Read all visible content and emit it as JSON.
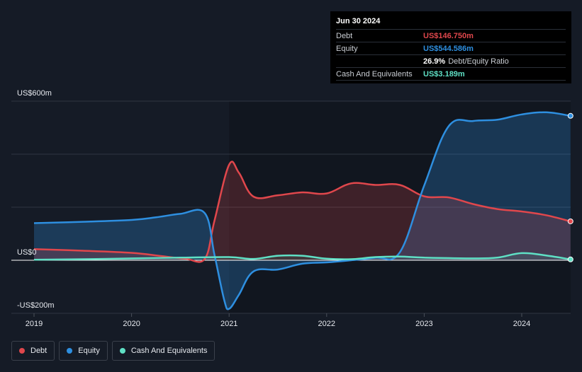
{
  "chart_data": {
    "type": "area",
    "y_axis_labels": [
      "US$600m",
      "US$0",
      "-US$200m"
    ],
    "ylim": [
      -200,
      600
    ],
    "x_ticks": [
      {
        "label": "2019",
        "x": 2019.0
      },
      {
        "label": "2020",
        "x": 2020.0
      },
      {
        "label": "2021",
        "x": 2021.0
      },
      {
        "label": "2022",
        "x": 2022.0
      },
      {
        "label": "2023",
        "x": 2023.0
      },
      {
        "label": "2024",
        "x": 2024.0
      }
    ],
    "xlim": [
      2018.75,
      2024.5
    ],
    "series": [
      {
        "name": "Debt",
        "color": "#e0474c",
        "fill": "rgba(224,71,76,0.22)",
        "points": [
          [
            2019.0,
            42
          ],
          [
            2019.5,
            36
          ],
          [
            2020.0,
            28
          ],
          [
            2020.3,
            16
          ],
          [
            2020.55,
            6
          ],
          [
            2020.75,
            5
          ],
          [
            2020.85,
            150
          ],
          [
            2021.0,
            360
          ],
          [
            2021.1,
            330
          ],
          [
            2021.25,
            240
          ],
          [
            2021.5,
            245
          ],
          [
            2021.75,
            256
          ],
          [
            2022.0,
            252
          ],
          [
            2022.25,
            290
          ],
          [
            2022.5,
            284
          ],
          [
            2022.75,
            284
          ],
          [
            2023.0,
            241
          ],
          [
            2023.25,
            237
          ],
          [
            2023.5,
            212
          ],
          [
            2023.75,
            193
          ],
          [
            2024.0,
            184
          ],
          [
            2024.25,
            170
          ],
          [
            2024.5,
            146.75
          ]
        ]
      },
      {
        "name": "Equity",
        "color": "#2e8fe0",
        "fill": "rgba(46,143,224,0.28)",
        "points": [
          [
            2019.0,
            140
          ],
          [
            2019.5,
            145
          ],
          [
            2020.0,
            152
          ],
          [
            2020.25,
            162
          ],
          [
            2020.5,
            175
          ],
          [
            2020.75,
            178
          ],
          [
            2020.85,
            20
          ],
          [
            2020.95,
            -150
          ],
          [
            2021.0,
            -183
          ],
          [
            2021.1,
            -130
          ],
          [
            2021.25,
            -42
          ],
          [
            2021.5,
            -35
          ],
          [
            2021.75,
            -13
          ],
          [
            2022.0,
            -8
          ],
          [
            2022.25,
            0
          ],
          [
            2022.5,
            10
          ],
          [
            2022.75,
            30
          ],
          [
            2023.0,
            282
          ],
          [
            2023.25,
            505
          ],
          [
            2023.5,
            525
          ],
          [
            2023.75,
            530
          ],
          [
            2024.0,
            550
          ],
          [
            2024.25,
            558
          ],
          [
            2024.5,
            544.586
          ]
        ]
      },
      {
        "name": "Cash And Equivalents",
        "color": "#5fe0c5",
        "fill": "rgba(95,224,197,0.12)",
        "points": [
          [
            2019.0,
            2
          ],
          [
            2019.5,
            4
          ],
          [
            2020.0,
            7
          ],
          [
            2020.5,
            10
          ],
          [
            2021.0,
            12
          ],
          [
            2021.25,
            5
          ],
          [
            2021.5,
            17
          ],
          [
            2021.75,
            17
          ],
          [
            2022.0,
            6
          ],
          [
            2022.25,
            4
          ],
          [
            2022.5,
            12
          ],
          [
            2022.75,
            14
          ],
          [
            2023.0,
            10
          ],
          [
            2023.5,
            7
          ],
          [
            2023.75,
            10
          ],
          [
            2024.0,
            27
          ],
          [
            2024.25,
            18
          ],
          [
            2024.5,
            3.189
          ]
        ]
      }
    ]
  },
  "tooltip": {
    "date": "Jun 30 2024",
    "debt_label": "Debt",
    "debt_value": "US$146.750m",
    "equity_label": "Equity",
    "equity_value": "US$544.586m",
    "ratio_value": "26.9%",
    "ratio_label": "Debt/Equity Ratio",
    "cash_label": "Cash And Equivalents",
    "cash_value": "US$3.189m"
  },
  "legend": [
    {
      "label": "Debt",
      "color": "#e0474c"
    },
    {
      "label": "Equity",
      "color": "#2e8fe0"
    },
    {
      "label": "Cash And Equivalents",
      "color": "#5fe0c5"
    }
  ]
}
